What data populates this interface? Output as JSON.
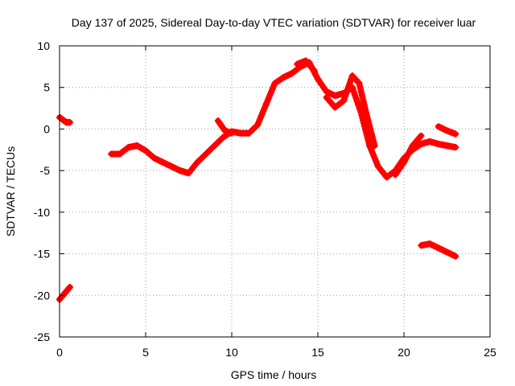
{
  "chart_data": {
    "type": "scatter",
    "title": "Day 137 of 2025, Sidereal Day-to-day VTEC variation (SDTVAR) for receiver luar",
    "xlabel": "GPS time / hours",
    "ylabel": "SDTVAR / TECUs",
    "xlim": [
      0,
      25
    ],
    "ylim": [
      -25,
      10
    ],
    "xticks": [
      "0",
      "5",
      "10",
      "15",
      "20",
      "25"
    ],
    "yticks": [
      "10",
      "5",
      "0",
      "-5",
      "-10",
      "-15",
      "-20",
      "-25"
    ],
    "grid": true,
    "series": [
      {
        "name": "SDTVAR",
        "color": "#ff0000",
        "segments": [
          [
            [
              0.0,
              1.4
            ],
            [
              0.2,
              1.1
            ],
            [
              0.4,
              0.8
            ],
            [
              0.6,
              0.8
            ]
          ],
          [
            [
              0.0,
              -20.5
            ],
            [
              0.2,
              -20.0
            ],
            [
              0.4,
              -19.5
            ],
            [
              0.6,
              -19.0
            ]
          ],
          [
            [
              3.0,
              -3.0
            ],
            [
              3.5,
              -3.0
            ],
            [
              4.0,
              -2.2
            ],
            [
              4.5,
              -2.0
            ],
            [
              5.0,
              -2.6
            ],
            [
              5.5,
              -3.5
            ],
            [
              6.0,
              -4.0
            ],
            [
              6.5,
              -4.5
            ],
            [
              7.0,
              -5.0
            ],
            [
              7.5,
              -5.3
            ],
            [
              8.0,
              -4.0
            ],
            [
              8.5,
              -3.0
            ],
            [
              9.0,
              -2.0
            ],
            [
              9.5,
              -1.0
            ],
            [
              10.0,
              -0.3
            ],
            [
              10.5,
              -0.5
            ],
            [
              11.0,
              -0.5
            ],
            [
              11.5,
              0.5
            ],
            [
              12.0,
              3.0
            ],
            [
              12.5,
              5.5
            ],
            [
              13.0,
              6.2
            ],
            [
              13.5,
              6.7
            ],
            [
              14.0,
              7.5
            ],
            [
              14.5,
              8.0
            ],
            [
              15.0,
              6.0
            ],
            [
              15.5,
              4.5
            ],
            [
              16.0,
              4.0
            ],
            [
              16.5,
              4.3
            ],
            [
              17.0,
              5.0
            ],
            [
              17.5,
              2.0
            ],
            [
              18.0,
              -2.0
            ],
            [
              18.5,
              -4.5
            ],
            [
              19.0,
              -5.8
            ],
            [
              19.5,
              -5.0
            ],
            [
              20.0,
              -3.5
            ],
            [
              20.5,
              -2.5
            ],
            [
              21.0,
              -1.8
            ],
            [
              21.5,
              -1.5
            ],
            [
              22.0,
              -1.8
            ],
            [
              22.5,
              -2.0
            ],
            [
              23.0,
              -2.2
            ]
          ],
          [
            [
              13.8,
              7.8
            ],
            [
              14.3,
              8.2
            ],
            [
              14.8,
              7.0
            ]
          ],
          [
            [
              9.2,
              1.0
            ],
            [
              9.6,
              -0.2
            ],
            [
              10.0,
              -0.5
            ]
          ],
          [
            [
              15.5,
              3.8
            ],
            [
              16.0,
              2.6
            ],
            [
              16.5,
              3.4
            ],
            [
              17.0,
              6.4
            ],
            [
              17.4,
              5.5
            ],
            [
              17.8,
              2.0
            ],
            [
              18.3,
              -2.0
            ]
          ],
          [
            [
              19.5,
              -5.5
            ],
            [
              20.0,
              -4.0
            ],
            [
              20.5,
              -2.0
            ],
            [
              21.0,
              -0.8
            ]
          ],
          [
            [
              22.0,
              0.3
            ],
            [
              22.5,
              -0.2
            ],
            [
              23.0,
              -0.6
            ]
          ],
          [
            [
              21.0,
              -14.0
            ],
            [
              21.5,
              -13.8
            ],
            [
              22.0,
              -14.3
            ],
            [
              22.5,
              -14.8
            ],
            [
              23.0,
              -15.3
            ]
          ]
        ]
      }
    ]
  }
}
